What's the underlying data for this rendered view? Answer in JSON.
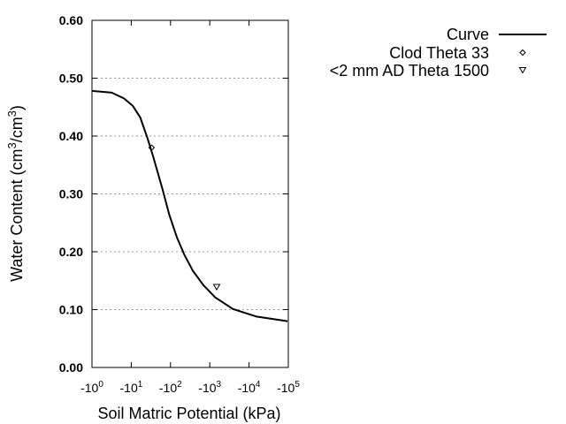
{
  "chart_data": {
    "type": "line",
    "title": "",
    "xlabel": "Soil Matric Potential (kPa)",
    "ylabel": {
      "prefix": "Water Content (cm",
      "sup1": "3",
      "mid": "/cm",
      "sup2": "3",
      "suffix": ")"
    },
    "x_scale": "log (negative potential)",
    "xlim": [
      -1,
      -100000
    ],
    "ylim": [
      0,
      0.6
    ],
    "grid": {
      "y": true,
      "style": "dotted"
    },
    "legend_position": "top-right, outside plot",
    "xticks": [
      {
        "value": -1,
        "base": "-10",
        "exp": "0"
      },
      {
        "value": -10,
        "base": "-10",
        "exp": "1"
      },
      {
        "value": -100,
        "base": "-10",
        "exp": "2"
      },
      {
        "value": -1000,
        "base": "-10",
        "exp": "3"
      },
      {
        "value": -10000,
        "base": "-10",
        "exp": "4"
      },
      {
        "value": -100000,
        "base": "-10",
        "exp": "5"
      }
    ],
    "yticks": [
      {
        "value": 0.0,
        "label": "0.00"
      },
      {
        "value": 0.1,
        "label": "0.10"
      },
      {
        "value": 0.2,
        "label": "0.20"
      },
      {
        "value": 0.3,
        "label": "0.30"
      },
      {
        "value": 0.4,
        "label": "0.40"
      },
      {
        "value": 0.5,
        "label": "0.50"
      },
      {
        "value": 0.6,
        "label": "0.60"
      }
    ],
    "series": [
      {
        "name": "Curve",
        "kind": "line",
        "color": "#000000",
        "x": [
          -1,
          -3.2,
          -6.5,
          -11,
          -17,
          -26,
          -36,
          -62,
          -93,
          -145,
          -224,
          -372,
          -692,
          -1380,
          -3890,
          -15500,
          -95500
        ],
        "y": [
          0.478,
          0.475,
          0.465,
          0.452,
          0.432,
          0.396,
          0.365,
          0.309,
          0.264,
          0.225,
          0.195,
          0.167,
          0.142,
          0.121,
          0.101,
          0.088,
          0.08
        ]
      },
      {
        "name": "Clod Theta 33",
        "kind": "marker",
        "marker": "diamond",
        "x": [
          -33
        ],
        "y": [
          0.38
        ]
      },
      {
        "name": "<2 mm AD Theta 1500",
        "kind": "marker",
        "marker": "triangle-down",
        "x": [
          -1500
        ],
        "y": [
          0.139
        ]
      }
    ]
  }
}
